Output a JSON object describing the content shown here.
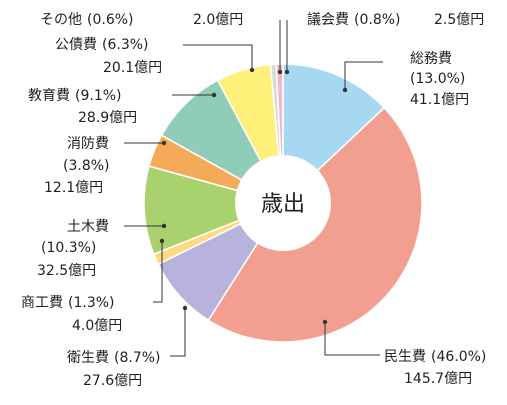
{
  "chart_data": {
    "type": "pie",
    "center_label": "歳出",
    "slices": [
      {
        "name": "総務費",
        "percent": "(13.0%)",
        "amount": "41.1億円",
        "value": 41.1,
        "color": "#a6d8f2"
      },
      {
        "name": "民生費",
        "percent": "(46.0%)",
        "amount": "145.7億円",
        "value": 145.7,
        "color": "#f29f92"
      },
      {
        "name": "衛生費",
        "percent": "(8.7%)",
        "amount": "27.6億円",
        "value": 27.6,
        "color": "#b8b3dc"
      },
      {
        "name": "商工費",
        "percent": "(1.3%)",
        "amount": "4.0億円",
        "value": 4.0,
        "color": "#ffd983"
      },
      {
        "name": "土木費",
        "percent": "(10.3%)",
        "amount": "32.5億円",
        "value": 32.5,
        "color": "#a9d26f"
      },
      {
        "name": "消防費",
        "percent": "(3.8%)",
        "amount": "12.1億円",
        "value": 12.1,
        "color": "#f4aa56"
      },
      {
        "name": "教育費",
        "percent": "(9.1%)",
        "amount": "28.9億円",
        "value": 28.9,
        "color": "#8fcdb8"
      },
      {
        "name": "公債費",
        "percent": "(6.3%)",
        "amount": "20.1億円",
        "value": 20.1,
        "color": "#fff07a"
      },
      {
        "name": "その他",
        "percent": "(0.6%)",
        "amount": "2.0億円",
        "value": 2.0,
        "color": "#d9d9d9"
      },
      {
        "name": "議会費",
        "percent": "(0.8%)",
        "amount": "2.5億円",
        "value": 2.5,
        "color": "#f2b8c8"
      }
    ]
  }
}
